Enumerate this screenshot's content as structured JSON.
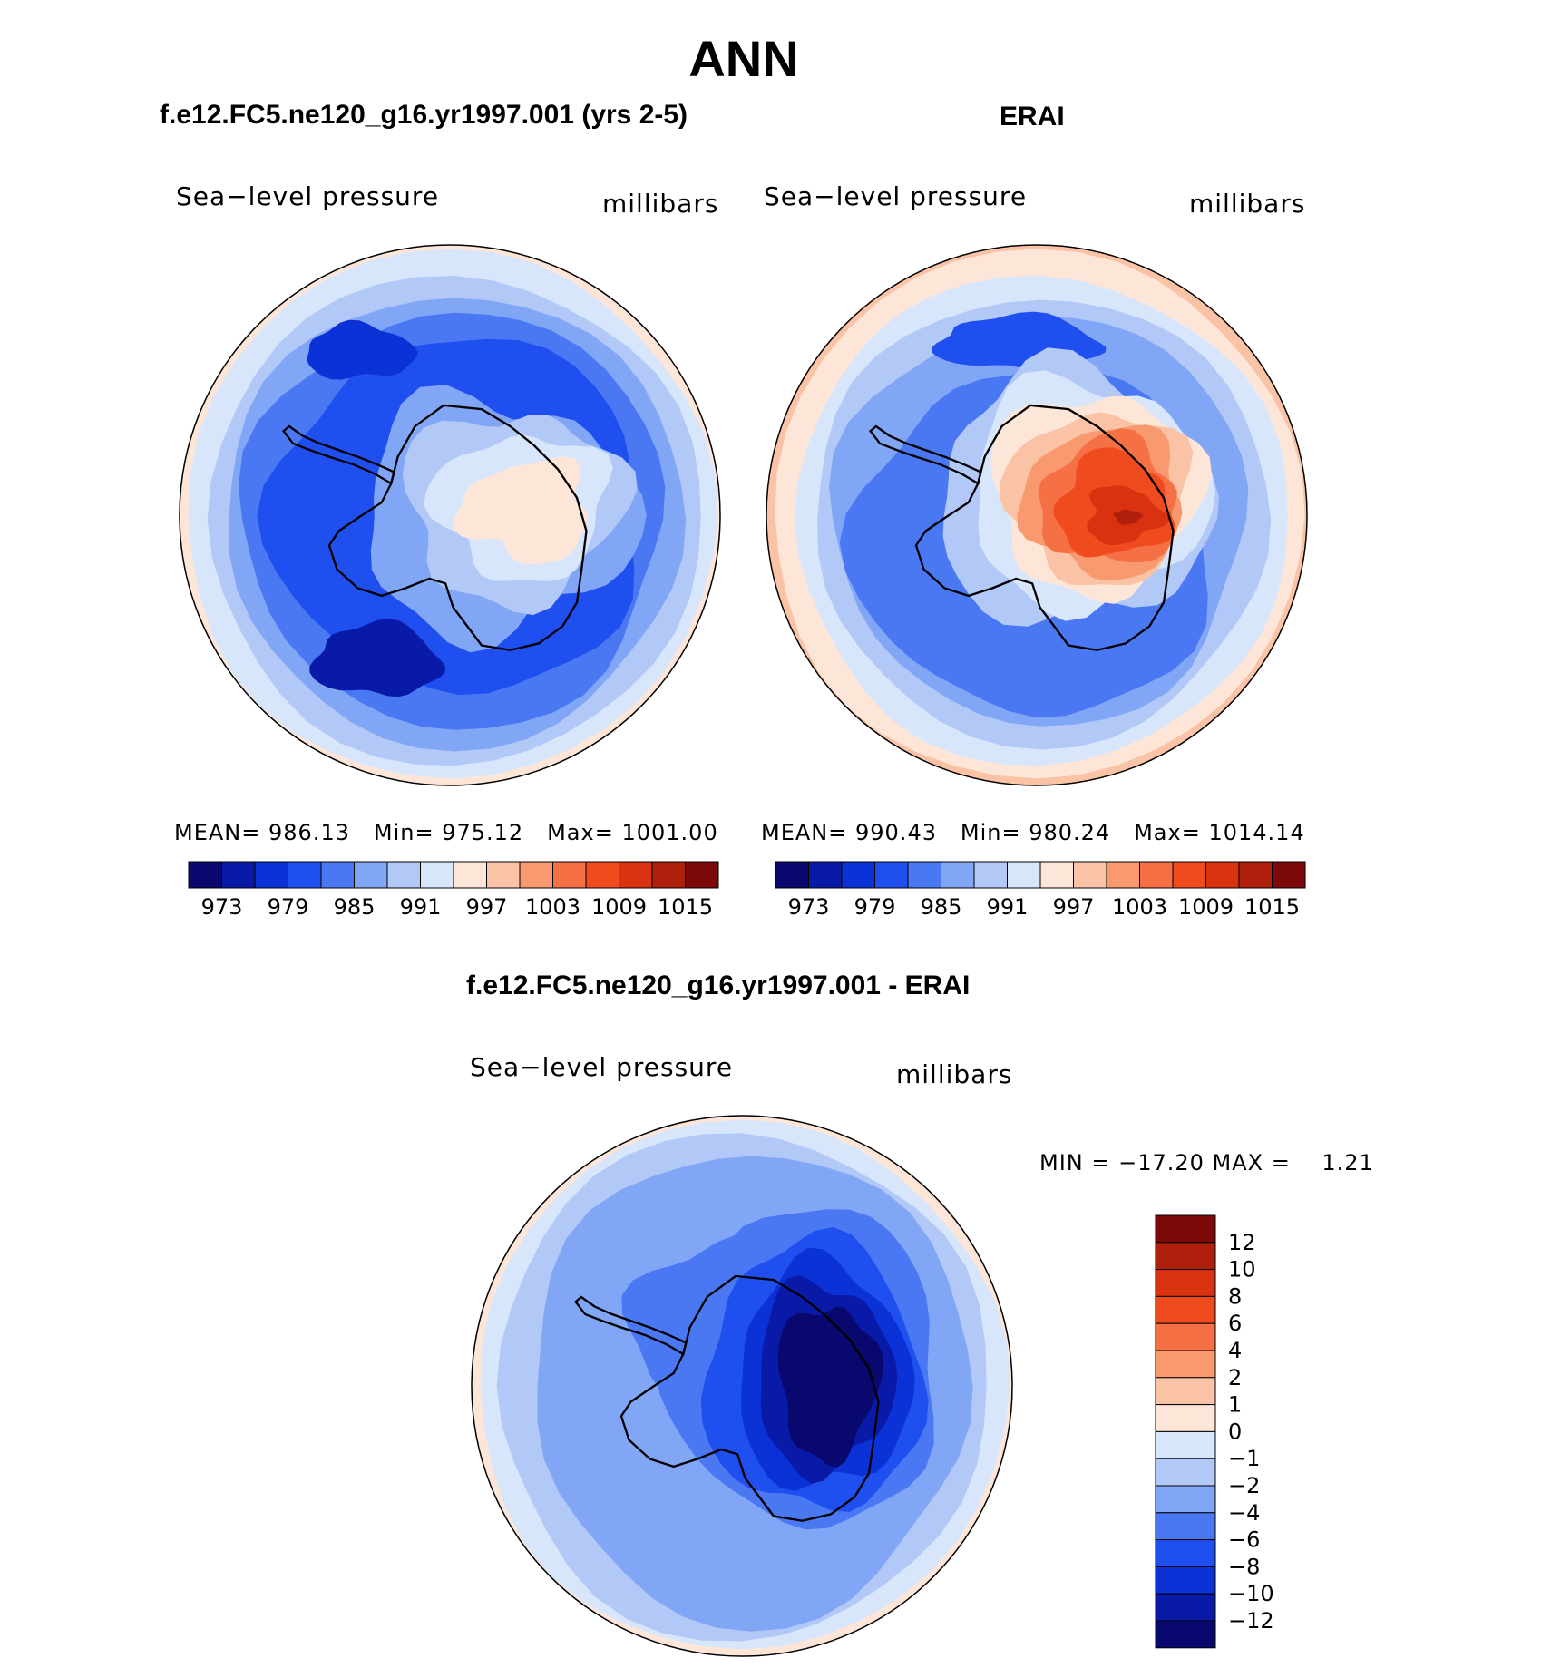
{
  "title": "ANN",
  "panels": [
    {
      "title": "f.e12.FC5.ne120_g16.yr1997.001 (yrs 2-5)",
      "variable": "Sea−level pressure",
      "units": "millibars",
      "stats": {
        "mean_label": "MEAN=",
        "mean": "986.13",
        "min_label": "Min=",
        "min": "975.12",
        "max_label": "Max=",
        "max": "1001.00"
      }
    },
    {
      "title": "ERAI",
      "variable": "Sea−level pressure",
      "units": "millibars",
      "stats": {
        "mean_label": "MEAN=",
        "mean": "990.43",
        "min_label": "Min=",
        "min": "980.24",
        "max_label": "Max=",
        "max": "1014.14"
      }
    },
    {
      "title": "f.e12.FC5.ne120_g16.yr1997.001 - ERAI",
      "variable": "Sea−level pressure",
      "units": "millibars",
      "stats": {
        "text": "MIN = −17.20 MAX =    1.21"
      }
    }
  ],
  "chart_data": [
    {
      "type": "heatmap",
      "projection": "south polar stereographic",
      "title": "f.e12.FC5.ne120_g16.yr1997.001 (yrs 2-5)",
      "variable": "Sea−level pressure",
      "units": "millibars",
      "mean": 986.13,
      "min": 975.12,
      "max": 1001.0,
      "colorbar_tick_labels": [
        "973",
        "979",
        "985",
        "991",
        "997",
        "1003",
        "1009",
        "1015"
      ],
      "levels": [
        973,
        976,
        979,
        982,
        985,
        988,
        991,
        994,
        997,
        1000,
        1003,
        1006,
        1009,
        1012,
        1015
      ]
    },
    {
      "type": "heatmap",
      "projection": "south polar stereographic",
      "title": "ERAI",
      "variable": "Sea−level pressure",
      "units": "millibars",
      "mean": 990.43,
      "min": 980.24,
      "max": 1014.14,
      "colorbar_tick_labels": [
        "973",
        "979",
        "985",
        "991",
        "997",
        "1003",
        "1009",
        "1015"
      ],
      "levels": [
        973,
        976,
        979,
        982,
        985,
        988,
        991,
        994,
        997,
        1000,
        1003,
        1006,
        1009,
        1012,
        1015
      ]
    },
    {
      "type": "heatmap",
      "projection": "south polar stereographic",
      "title": "f.e12.FC5.ne120_g16.yr1997.001 - ERAI",
      "variable": "Sea−level pressure",
      "units": "millibars",
      "min": -17.2,
      "max": 1.21,
      "colorbar_tick_labels": [
        "12",
        "10",
        "8",
        "6",
        "4",
        "2",
        "1",
        "0",
        "−1",
        "−2",
        "−4",
        "−6",
        "−8",
        "−10",
        "−12"
      ],
      "levels": [
        12,
        10,
        8,
        6,
        4,
        2,
        1,
        0,
        -1,
        -2,
        -4,
        -6,
        -8,
        -10,
        -12
      ]
    }
  ],
  "palette": [
    "#08086e",
    "#0a1aa8",
    "#0b32d6",
    "#1f4fee",
    "#4a78f2",
    "#82a6f6",
    "#b2c9f8",
    "#d7e6fb",
    "#fde6d8",
    "#fbc3a6",
    "#f9996f",
    "#f57045",
    "#f04a1f",
    "#d83210",
    "#b01e0c",
    "#7c0808"
  ]
}
